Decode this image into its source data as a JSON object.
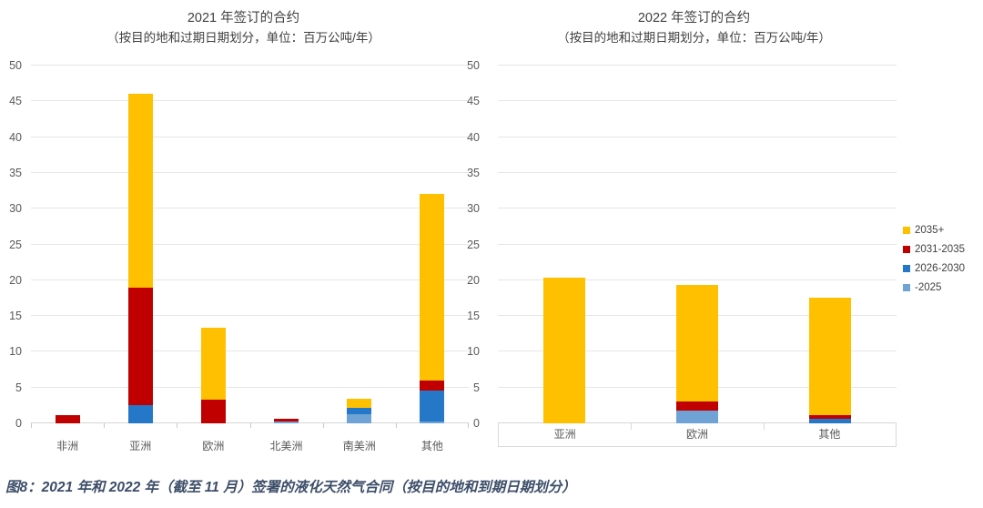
{
  "page": {
    "background": "#FFFFFF",
    "caption": "图8：2021 年和 2022 年（截至 11 月）签署的液化天然气合同（按目的地和到期日期划分）"
  },
  "colors": {
    "series_2035plus": "#FFC000",
    "series_2031_2035": "#C00000",
    "series_2026_2030": "#2577C8",
    "series_pre2025": "#6FA3D6",
    "gridline": "#E6E6E6",
    "axis_text": "#595959",
    "title_text": "#404040",
    "caption_text": "#3D4E69"
  },
  "legend": {
    "position": "right",
    "items": [
      {
        "label": "2035+",
        "color": "#FFC000"
      },
      {
        "label": "2031-2035",
        "color": "#C00000"
      },
      {
        "label": "2026-2030",
        "color": "#2577C8"
      },
      {
        "label": "-2025",
        "color": "#6FA3D6"
      }
    ]
  },
  "chart_data": [
    {
      "type": "bar",
      "stacked": true,
      "title": "2021 年签订的合约",
      "subtitle": "（按目的地和过期日期划分，单位：百万公吨/年）",
      "categories": [
        "非洲",
        "亚洲",
        "欧洲",
        "北美洲",
        "南美洲",
        "其他"
      ],
      "series": [
        {
          "name": "-2025",
          "color": "#6FA3D6",
          "values": [
            0,
            0,
            0,
            0.3,
            1.3,
            0.3
          ]
        },
        {
          "name": "2026-2030",
          "color": "#2577C8",
          "values": [
            0,
            2.5,
            0,
            0,
            0.9,
            4.3
          ]
        },
        {
          "name": "2031-2035",
          "color": "#C00000",
          "values": [
            1.2,
            16.5,
            3.3,
            0.4,
            0,
            1.4
          ]
        },
        {
          "name": "2035+",
          "color": "#FFC000",
          "values": [
            0,
            27.0,
            10.0,
            0,
            1.2,
            26.1
          ]
        }
      ],
      "totals": [
        1.2,
        46.0,
        13.3,
        0.7,
        3.4,
        32.1
      ],
      "ylim": [
        0,
        50
      ],
      "ytick_step": 5,
      "grid": true,
      "unit": "百万公吨/年"
    },
    {
      "type": "bar",
      "stacked": true,
      "title": "2022 年签订的合约",
      "subtitle": "（按目的地和过期日期划分，单位：百万公吨/年）",
      "categories": [
        "亚洲",
        "欧洲",
        "其他"
      ],
      "series": [
        {
          "name": "-2025",
          "color": "#6FA3D6",
          "values": [
            0,
            1.8,
            0
          ]
        },
        {
          "name": "2026-2030",
          "color": "#2577C8",
          "values": [
            0,
            0,
            0.6
          ]
        },
        {
          "name": "2031-2035",
          "color": "#C00000",
          "values": [
            0,
            1.2,
            0.6
          ]
        },
        {
          "name": "2035+",
          "color": "#FFC000",
          "values": [
            20.4,
            16.4,
            16.4
          ]
        }
      ],
      "totals": [
        20.4,
        19.4,
        17.6
      ],
      "ylim": [
        0,
        50
      ],
      "ytick_step": 5,
      "grid": true,
      "unit": "百万公吨/年"
    }
  ]
}
